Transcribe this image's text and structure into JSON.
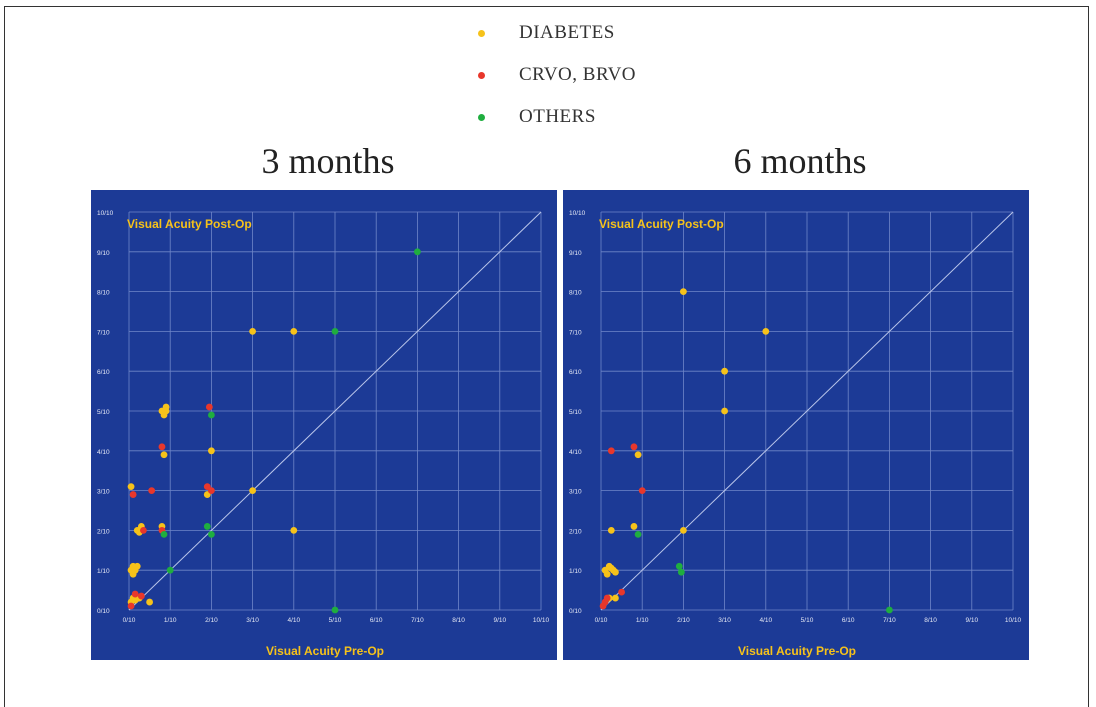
{
  "legend": {
    "items": [
      {
        "label": "DIABETES",
        "color": "#f6c21a"
      },
      {
        "label": "CRVO, BRVO",
        "color": "#e8372b"
      },
      {
        "label": "OTHERS",
        "color": "#1fae3f"
      }
    ]
  },
  "chart_data": [
    {
      "type": "scatter",
      "title": "3 months",
      "xlabel": "Visual Acuity Pre-Op",
      "ylabel": "Visual Acuity Post-Op",
      "xlim": [
        0,
        10
      ],
      "ylim": [
        0,
        10
      ],
      "x_ticks": [
        "0/10",
        "1/10",
        "2/10",
        "3/10",
        "4/10",
        "5/10",
        "6/10",
        "7/10",
        "8/10",
        "9/10",
        "10/10"
      ],
      "y_ticks": [
        "0/10",
        "1/10",
        "2/10",
        "3/10",
        "4/10",
        "5/10",
        "6/10",
        "7/10",
        "8/10",
        "9/10",
        "10/10"
      ],
      "grid": true,
      "diagonal": true,
      "background": "#1c3a96",
      "series": [
        {
          "name": "DIABETES",
          "color": "#f6c21a",
          "points": [
            [
              0.05,
              0.2
            ],
            [
              0.1,
              0.3
            ],
            [
              0.15,
              0.25
            ],
            [
              0.25,
              0.3
            ],
            [
              0.5,
              0.2
            ],
            [
              0.05,
              1.0
            ],
            [
              0.1,
              1.1
            ],
            [
              0.15,
              1.0
            ],
            [
              0.1,
              0.9
            ],
            [
              0.2,
              1.1
            ],
            [
              0.2,
              2.0
            ],
            [
              0.3,
              2.1
            ],
            [
              0.25,
              1.95
            ],
            [
              0.05,
              3.1
            ],
            [
              0.8,
              2.1
            ],
            [
              1.9,
              2.9
            ],
            [
              0.85,
              3.9
            ],
            [
              2.0,
              4.0
            ],
            [
              3.0,
              3.0
            ],
            [
              0.8,
              5.0
            ],
            [
              0.9,
              5.1
            ],
            [
              0.85,
              4.9
            ],
            [
              0.9,
              5.0
            ],
            [
              3.0,
              7.0
            ],
            [
              4.0,
              7.0
            ],
            [
              4.0,
              2.0
            ]
          ]
        },
        {
          "name": "CRVO, BRVO",
          "color": "#e8372b",
          "points": [
            [
              0.05,
              0.1
            ],
            [
              0.15,
              0.4
            ],
            [
              0.3,
              0.35
            ],
            [
              0.1,
              2.9
            ],
            [
              0.35,
              2.0
            ],
            [
              0.55,
              3.0
            ],
            [
              0.8,
              4.1
            ],
            [
              1.9,
              3.1
            ],
            [
              1.95,
              5.1
            ],
            [
              2.0,
              3.0
            ],
            [
              0.8,
              2.0
            ]
          ]
        },
        {
          "name": "OTHERS",
          "color": "#1fae3f",
          "points": [
            [
              1.0,
              1.0
            ],
            [
              0.85,
              1.9
            ],
            [
              1.9,
              2.1
            ],
            [
              2.0,
              1.9
            ],
            [
              2.0,
              4.9
            ],
            [
              5.0,
              7.0
            ],
            [
              5.0,
              0.0
            ],
            [
              7.0,
              9.0
            ]
          ]
        }
      ]
    },
    {
      "type": "scatter",
      "title": "6 months",
      "xlabel": "Visual Acuity Pre-Op",
      "ylabel": "Visual Acuity Post-Op",
      "xlim": [
        0,
        10
      ],
      "ylim": [
        0,
        10
      ],
      "x_ticks": [
        "0/10",
        "1/10",
        "2/10",
        "3/10",
        "4/10",
        "5/10",
        "6/10",
        "7/10",
        "8/10",
        "9/10",
        "10/10"
      ],
      "y_ticks": [
        "0/10",
        "1/10",
        "2/10",
        "3/10",
        "4/10",
        "5/10",
        "6/10",
        "7/10",
        "8/10",
        "9/10",
        "10/10"
      ],
      "grid": true,
      "diagonal": true,
      "background": "#1c3a96",
      "series": [
        {
          "name": "DIABETES",
          "color": "#f6c21a",
          "points": [
            [
              0.1,
              1.0
            ],
            [
              0.2,
              1.1
            ],
            [
              0.3,
              1.0
            ],
            [
              0.15,
              0.9
            ],
            [
              0.35,
              0.95
            ],
            [
              0.25,
              1.05
            ],
            [
              0.2,
              0.3
            ],
            [
              0.35,
              0.3
            ],
            [
              0.25,
              2.0
            ],
            [
              0.8,
              2.1
            ],
            [
              0.9,
              3.9
            ],
            [
              2.0,
              2.0
            ],
            [
              3.0,
              5.0
            ],
            [
              3.0,
              6.0
            ],
            [
              4.0,
              7.0
            ],
            [
              2.0,
              8.0
            ]
          ]
        },
        {
          "name": "CRVO, BRVO",
          "color": "#e8372b",
          "points": [
            [
              0.1,
              0.2
            ],
            [
              0.15,
              0.3
            ],
            [
              0.5,
              0.45
            ],
            [
              0.25,
              4.0
            ],
            [
              0.8,
              4.1
            ],
            [
              1.0,
              3.0
            ],
            [
              0.05,
              0.1
            ]
          ]
        },
        {
          "name": "OTHERS",
          "color": "#1fae3f",
          "points": [
            [
              0.9,
              1.9
            ],
            [
              1.9,
              1.1
            ],
            [
              1.95,
              0.95
            ],
            [
              7.0,
              0.0
            ]
          ]
        }
      ]
    }
  ]
}
